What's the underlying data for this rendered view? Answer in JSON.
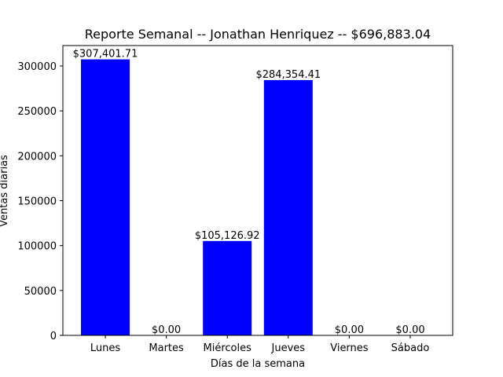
{
  "chart_data": {
    "type": "bar",
    "title": "Reporte Semanal -- Jonathan Henriquez  -- $696,883.04",
    "xlabel": "Días de la semana",
    "ylabel": "Ventas diarias",
    "categories": [
      "Lunes",
      "Martes",
      "Miércoles",
      "Jueves",
      "Viernes",
      "Sábado"
    ],
    "values": [
      307401.71,
      0,
      105126.92,
      284354.41,
      0,
      0
    ],
    "data_labels": [
      "$307,401.71",
      "$0.00",
      "$105,126.92",
      "$284,354.41",
      "$0.00",
      "$0.00"
    ],
    "ylim": [
      0,
      322771.8
    ],
    "yticks": [
      0,
      50000,
      100000,
      150000,
      200000,
      250000,
      300000
    ],
    "ytick_labels": [
      "0",
      "50000",
      "100000",
      "150000",
      "200000",
      "250000",
      "300000"
    ],
    "bar_color": "#0000ff",
    "grid": false,
    "legend": "none"
  }
}
